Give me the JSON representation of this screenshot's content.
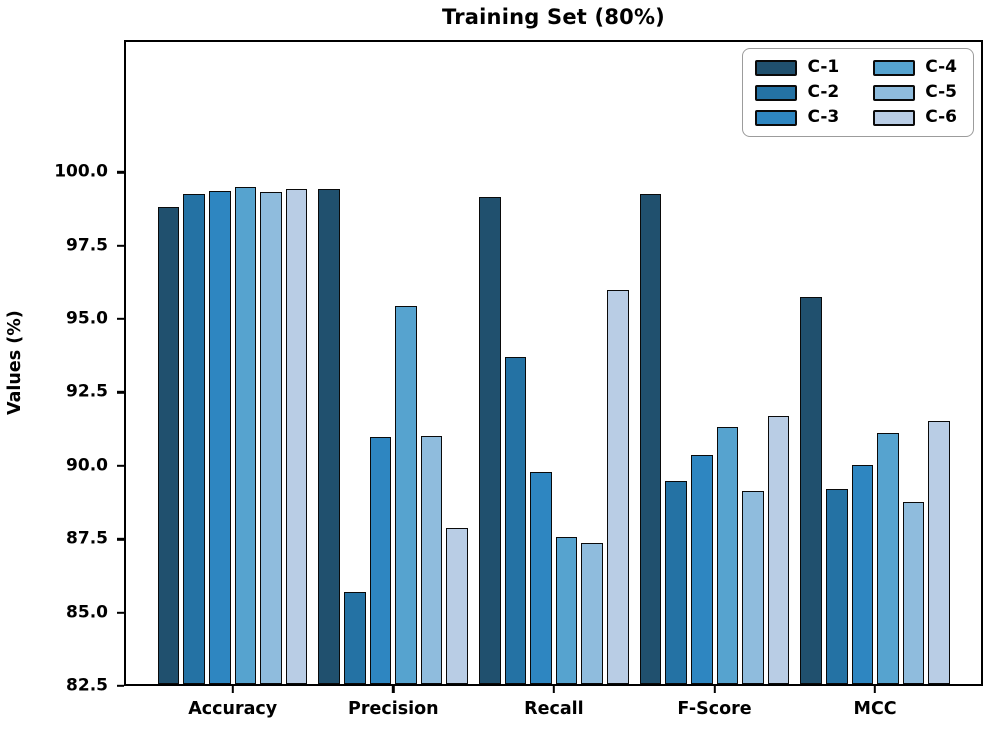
{
  "figure": {
    "title": "Training Set (80%)",
    "ylabel": "Values (%)"
  },
  "chart_data": {
    "type": "bar",
    "title": "Training Set (80%)",
    "xlabel": "",
    "ylabel": "Values (%)",
    "ylim": [
      82.5,
      104.5
    ],
    "yticks": [
      82.5,
      85.0,
      87.5,
      90.0,
      92.5,
      95.0,
      97.5,
      100.0
    ],
    "ytick_decimals": 1,
    "grid": false,
    "legend_position": "upper right",
    "legend_columns": 2,
    "categories": [
      "Accuracy",
      "Precision",
      "Recall",
      "F-Score",
      "MCC"
    ],
    "series": [
      {
        "name": "C-1",
        "color": "#20506e",
        "values": [
          98.85,
          99.45,
          99.2,
          99.3,
          95.75
        ]
      },
      {
        "name": "C-2",
        "color": "#2472a4",
        "values": [
          99.3,
          85.65,
          93.7,
          89.45,
          89.2
        ]
      },
      {
        "name": "C-3",
        "color": "#2e86c1",
        "values": [
          99.4,
          90.95,
          89.75,
          90.35,
          90.0
        ]
      },
      {
        "name": "C-4",
        "color": "#56a3cf",
        "values": [
          99.55,
          95.45,
          87.55,
          91.3,
          91.1
        ]
      },
      {
        "name": "C-5",
        "color": "#8fbcdd",
        "values": [
          99.35,
          91.0,
          87.35,
          89.1,
          88.75
        ]
      },
      {
        "name": "C-6",
        "color": "#b9cde5",
        "values": [
          99.45,
          87.85,
          96.0,
          91.7,
          91.5
        ]
      }
    ],
    "axis_color": "#000000",
    "bar_edge_color": "#0a0a0a"
  }
}
